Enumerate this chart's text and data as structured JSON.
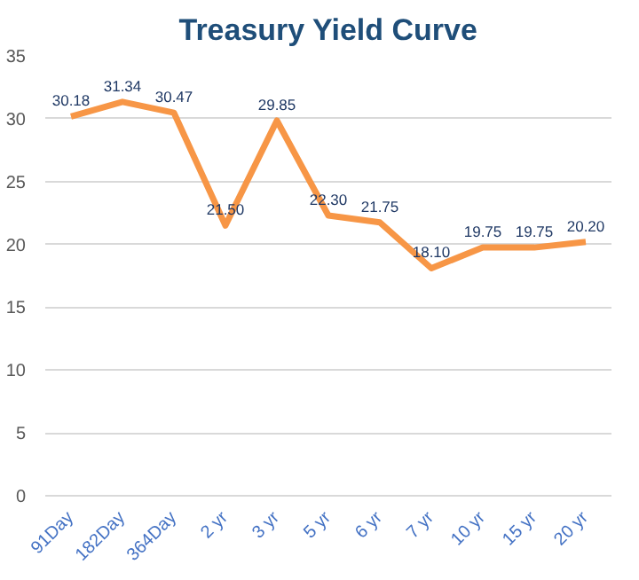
{
  "chart_data": {
    "type": "line",
    "title": "Treasury Yield Curve",
    "categories": [
      "91Day",
      "182Day",
      "364Day",
      "2 yr",
      "3 yr",
      "5 yr",
      "6 yr",
      "7 yr",
      "10 yr",
      "15 yr",
      "20 yr"
    ],
    "series": [
      {
        "color": "#f79646",
        "values": [
          30.18,
          31.34,
          30.47,
          21.5,
          29.85,
          22.3,
          21.75,
          18.1,
          19.75,
          19.75,
          20.2
        ],
        "value_labels": [
          "30.18",
          "31.34",
          "30.47",
          "21.50",
          "29.85",
          "22.30",
          "21.75",
          "18.10",
          "19.75",
          "19.75",
          "20.20"
        ]
      }
    ],
    "ylim": [
      0,
      35
    ],
    "yticks": [
      0,
      5,
      10,
      15,
      20,
      25,
      30,
      35
    ],
    "grid": "y",
    "marker": "none",
    "line_style": "solid"
  }
}
